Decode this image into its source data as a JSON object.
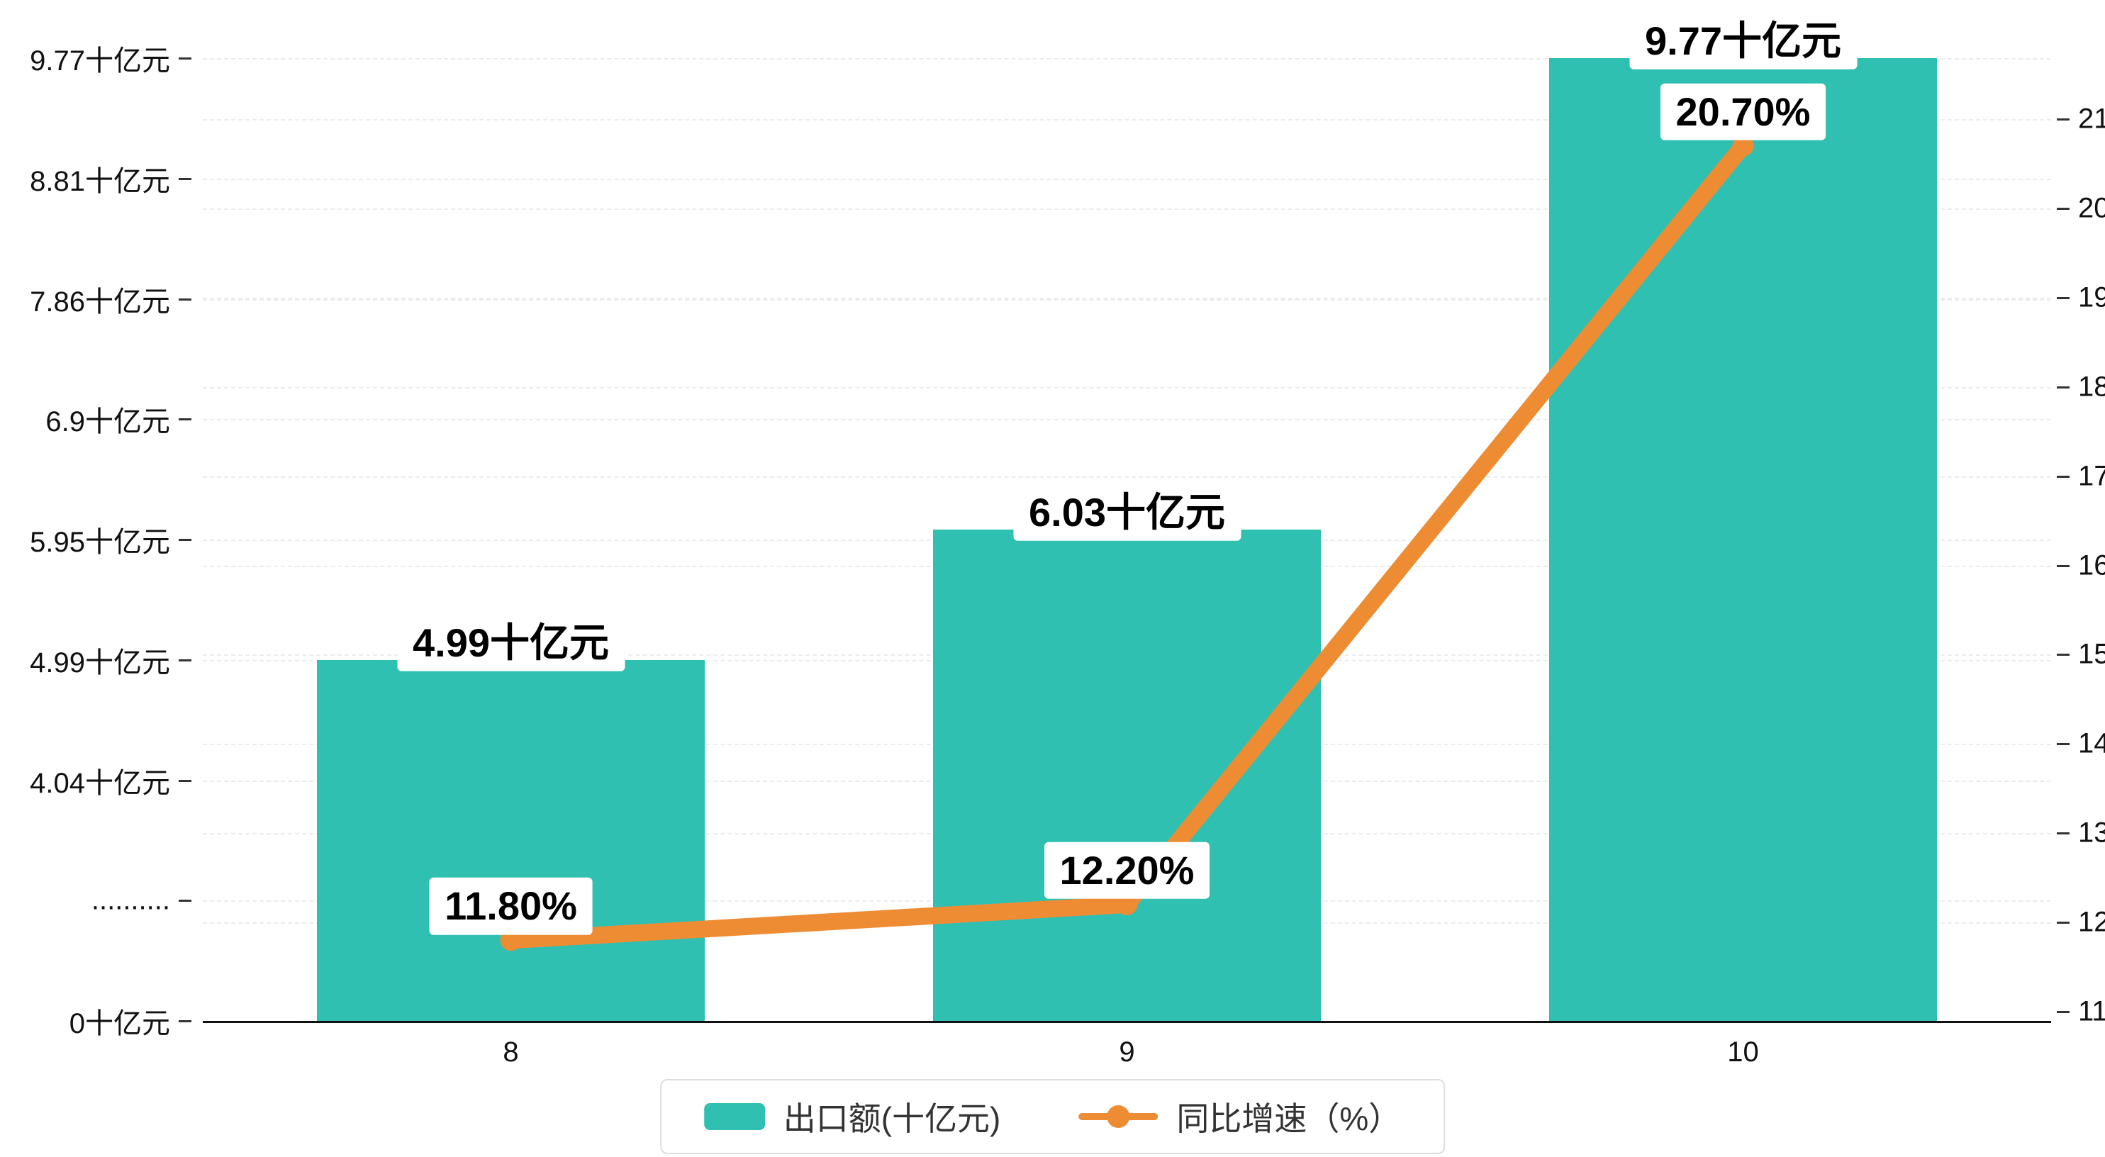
{
  "chart_data": {
    "type": "bar",
    "categories": [
      "8",
      "9",
      "10"
    ],
    "series": [
      {
        "name": "出口额(十亿元)",
        "kind": "bar",
        "values": [
          4.99,
          6.03,
          9.77
        ],
        "labels": [
          "4.99十亿元",
          "6.03十亿元",
          "9.77十亿元"
        ],
        "color": "#2fc0b2"
      },
      {
        "name": "同比增速（%）",
        "kind": "line",
        "values": [
          11.8,
          12.2,
          20.7
        ],
        "labels": [
          "11.80%",
          "12.20%",
          "20.70%"
        ],
        "color": "#ee8c34"
      }
    ],
    "left_axis": {
      "tick_labels": [
        "0十亿元",
        "..........",
        "4.04十亿元",
        "4.99十亿元",
        "5.95十亿元",
        "6.9十亿元",
        "7.86十亿元",
        "8.81十亿元",
        "9.77十亿元"
      ],
      "tick_values": [
        0,
        null,
        4.04,
        4.99,
        5.95,
        6.9,
        7.86,
        8.81,
        9.77
      ]
    },
    "right_axis": {
      "min": 11,
      "max": 21,
      "tick_labels": [
        "11",
        "12",
        "13",
        "14",
        "15",
        "16",
        "17",
        "18",
        "19",
        "20",
        "21"
      ]
    },
    "grid": true,
    "legend_position": "bottom",
    "title": "",
    "xlabel": "",
    "ylabel_left": "十亿元",
    "ylabel_right": "%"
  }
}
